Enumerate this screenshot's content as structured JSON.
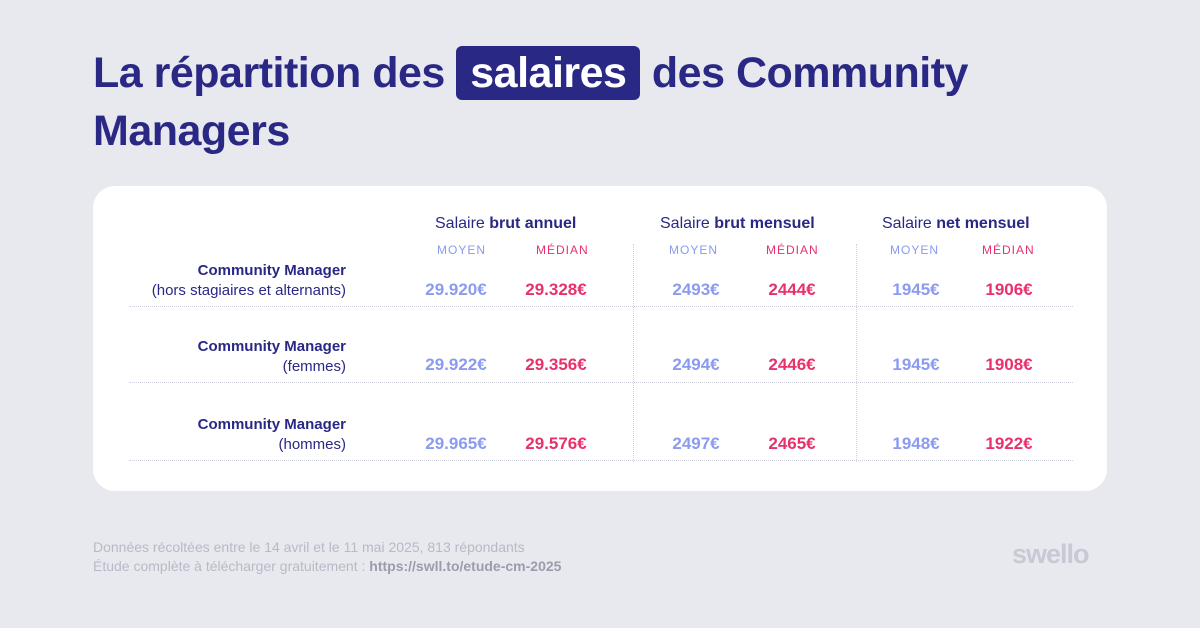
{
  "title": {
    "before": "La répartition des",
    "highlight": "salaires",
    "after": "des Community Managers"
  },
  "groups": [
    {
      "prefix": "Salaire ",
      "bold": "brut annuel"
    },
    {
      "prefix": "Salaire ",
      "bold": "brut mensuel"
    },
    {
      "prefix": "Salaire ",
      "bold": "net mensuel"
    }
  ],
  "sub_labels": {
    "mean": "Moyen",
    "median": "Médian"
  },
  "rows": [
    {
      "name": "Community Manager",
      "detail": "(hors stagiaires et alternants)",
      "values": [
        "29.920€",
        "29.328€",
        "2493€",
        "2444€",
        "1945€",
        "1906€"
      ]
    },
    {
      "name": "Community Manager",
      "detail": "(femmes)",
      "values": [
        "29.922€",
        "29.356€",
        "2494€",
        "2446€",
        "1945€",
        "1908€"
      ]
    },
    {
      "name": "Community Manager",
      "detail": "(hommes)",
      "values": [
        "29.965€",
        "29.576€",
        "2497€",
        "2465€",
        "1948€",
        "1922€"
      ]
    }
  ],
  "footer": {
    "line1": "Données récoltées entre le 14 avril et le 11 mai 2025, 813 répondants",
    "line2_prefix": "Étude complète à télécharger gratuitement : ",
    "link": "https://swll.to/etude-cm-2025"
  },
  "logo": "swello",
  "colors": {
    "navy": "#2a2885",
    "mean": "#8a9bf0",
    "median": "#e8316a",
    "background": "#e8e9ef"
  }
}
